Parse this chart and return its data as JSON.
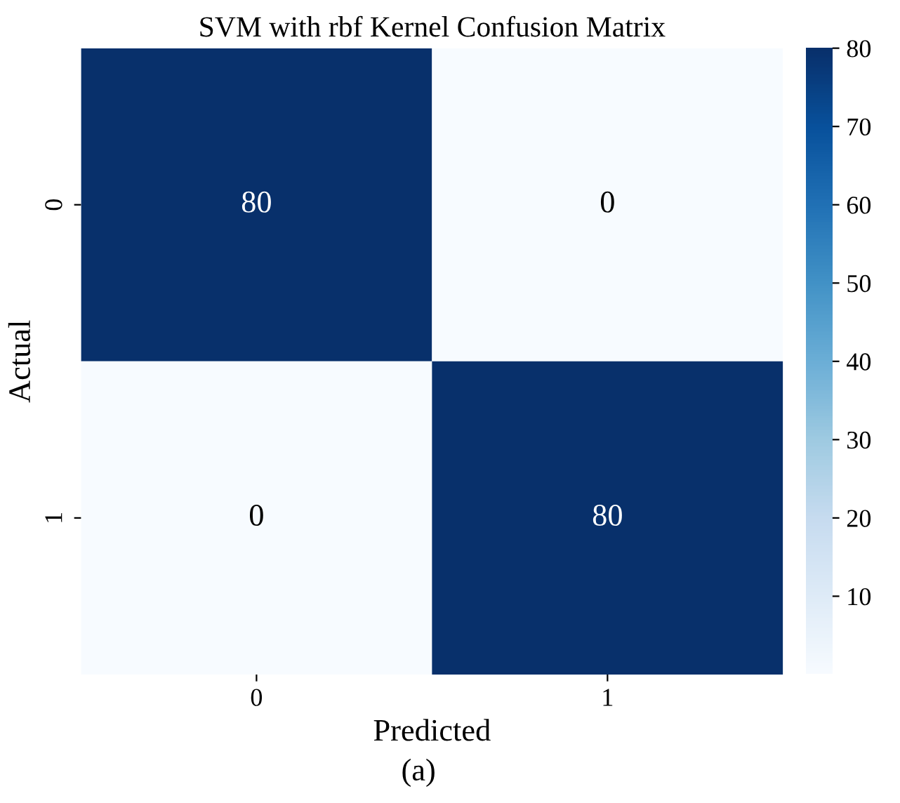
{
  "chart_data": {
    "type": "heatmap",
    "title": "SVM with rbf Kernel Confusion Matrix",
    "xlabel": "Predicted",
    "ylabel": "Actual",
    "annotations": [
      "(a)"
    ],
    "categories": [
      "0",
      "1"
    ],
    "y_categories": [
      "0",
      "1"
    ],
    "cells": [
      [
        80,
        0
      ],
      [
        0,
        80
      ]
    ],
    "data_labels": true,
    "clim": [
      0,
      80
    ],
    "cticks": [
      10,
      20,
      30,
      40,
      50,
      60,
      70,
      80
    ]
  }
}
